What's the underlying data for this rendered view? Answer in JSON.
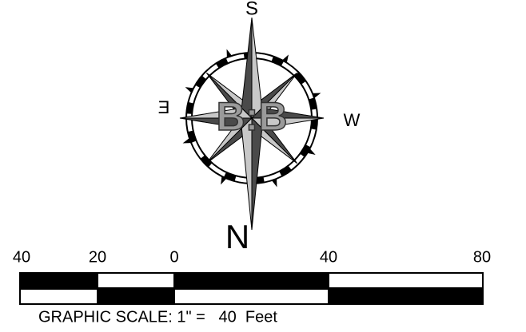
{
  "compass": {
    "south": "S",
    "east": "E",
    "west": "W",
    "north": "N",
    "logo": "B:B"
  },
  "scale": {
    "labels": [
      "40",
      "20",
      "0",
      "40",
      "80"
    ],
    "caption": "GRAPHIC SCALE: 1\" =   40  Feet"
  }
}
